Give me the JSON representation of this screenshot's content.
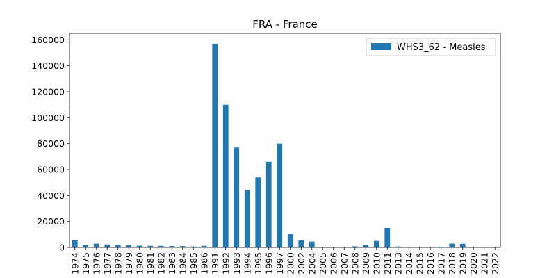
{
  "chart_data": {
    "type": "bar",
    "title": "FRA - France",
    "xlabel": "",
    "ylabel": "",
    "ylim": [
      0,
      165000
    ],
    "yticks": [
      0,
      20000,
      40000,
      60000,
      80000,
      100000,
      120000,
      140000,
      160000
    ],
    "legend_position": "top-right",
    "grid": false,
    "categories": [
      "1974",
      "1975",
      "1976",
      "1977",
      "1978",
      "1979",
      "1980",
      "1981",
      "1982",
      "1983",
      "1984",
      "1985",
      "1986",
      "1991",
      "1992",
      "1993",
      "1994",
      "1995",
      "1996",
      "1997",
      "2000",
      "2002",
      "2004",
      "2005",
      "2006",
      "2007",
      "2008",
      "2009",
      "2010",
      "2011",
      "2013",
      "2014",
      "2015",
      "2016",
      "2017",
      "2018",
      "2019",
      "2020",
      "2021",
      "2022"
    ],
    "series": [
      {
        "name": "WHS3_62 - Measles",
        "color": "#1f77b4",
        "values": [
          5500,
          1800,
          2900,
          2300,
          2200,
          1700,
          1300,
          1200,
          1200,
          1100,
          1000,
          700,
          1200,
          157000,
          110000,
          77000,
          44000,
          54000,
          66000,
          80000,
          10500,
          5500,
          4500,
          200,
          100,
          100,
          800,
          1900,
          5000,
          15000,
          700,
          300,
          300,
          100,
          500,
          2900,
          2800,
          200,
          100,
          100
        ]
      }
    ]
  }
}
